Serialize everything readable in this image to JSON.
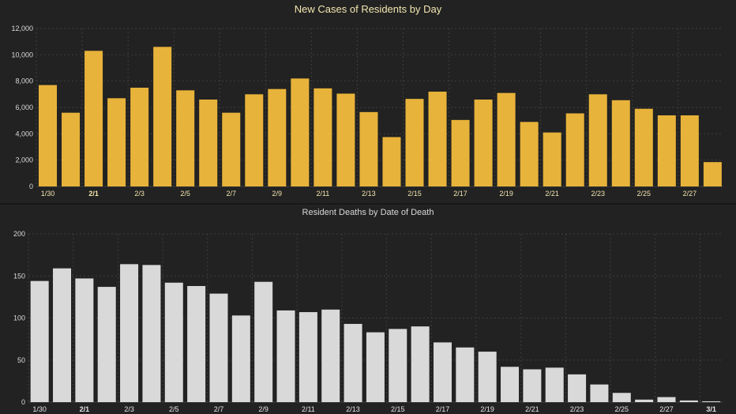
{
  "chart_data": [
    {
      "type": "bar",
      "title": "New Cases of Residents by Day",
      "xlabel": "",
      "ylabel": "",
      "ylim": [
        0,
        12000
      ],
      "yticks": [
        0,
        2000,
        4000,
        6000,
        8000,
        10000,
        12000
      ],
      "ytick_labels": [
        "0",
        "2,000",
        "4,000",
        "6,000",
        "8,000",
        "10,000",
        "12,000"
      ],
      "categories": [
        "1/30",
        "1/31",
        "2/1",
        "2/2",
        "2/3",
        "2/4",
        "2/5",
        "2/6",
        "2/7",
        "2/8",
        "2/9",
        "2/10",
        "2/11",
        "2/12",
        "2/13",
        "2/14",
        "2/15",
        "2/16",
        "2/17",
        "2/18",
        "2/19",
        "2/20",
        "2/21",
        "2/22",
        "2/23",
        "2/24",
        "2/25",
        "2/26",
        "2/27",
        "2/28"
      ],
      "xtick_labels": [
        "1/30",
        "2/1",
        "2/3",
        "2/5",
        "2/7",
        "2/9",
        "2/11",
        "2/13",
        "2/15",
        "2/17",
        "2/19",
        "2/21",
        "2/23",
        "2/25",
        "2/27"
      ],
      "values": [
        7700,
        5600,
        10300,
        6700,
        7500,
        10600,
        7300,
        6600,
        5600,
        7000,
        7400,
        8200,
        7450,
        7050,
        5650,
        3750,
        6650,
        7200,
        5050,
        6600,
        7100,
        4900,
        4100,
        5550,
        7000,
        6550,
        5900,
        5400,
        5400,
        1850
      ],
      "bar_color": "#e8b33a",
      "grid": true
    },
    {
      "type": "bar",
      "title": "Resident Deaths by Date of Death",
      "xlabel": "",
      "ylabel": "",
      "ylim": [
        0,
        200
      ],
      "yticks": [
        0,
        50,
        100,
        150,
        200
      ],
      "ytick_labels": [
        "0",
        "50",
        "100",
        "150",
        "200"
      ],
      "categories": [
        "1/30",
        "1/31",
        "2/1",
        "2/2",
        "2/3",
        "2/4",
        "2/5",
        "2/6",
        "2/7",
        "2/8",
        "2/9",
        "2/10",
        "2/11",
        "2/12",
        "2/13",
        "2/14",
        "2/15",
        "2/16",
        "2/17",
        "2/18",
        "2/19",
        "2/20",
        "2/21",
        "2/22",
        "2/23",
        "2/24",
        "2/25",
        "2/26",
        "2/27",
        "2/28",
        "3/1"
      ],
      "xtick_labels": [
        "1/30",
        "2/1",
        "2/3",
        "2/5",
        "2/7",
        "2/9",
        "2/11",
        "2/13",
        "2/15",
        "2/17",
        "2/19",
        "2/21",
        "2/23",
        "2/25",
        "2/27",
        "3/1"
      ],
      "values": [
        144,
        159,
        147,
        137,
        164,
        163,
        142,
        138,
        129,
        103,
        143,
        109,
        107,
        110,
        93,
        83,
        87,
        90,
        71,
        65,
        60,
        42,
        39,
        41,
        33,
        21,
        11,
        3,
        6,
        2,
        1
      ],
      "bar_color": "#d9d9d9",
      "grid": true
    }
  ]
}
